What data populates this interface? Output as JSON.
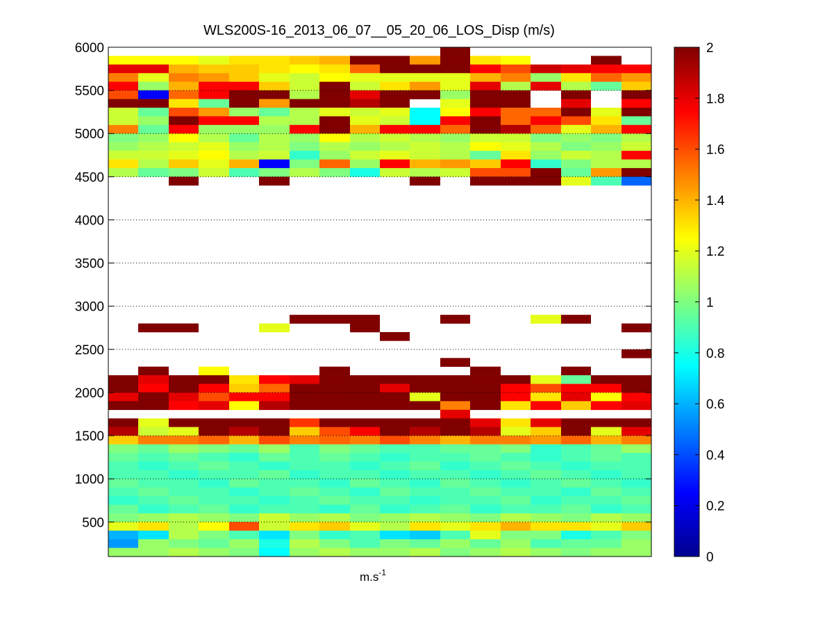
{
  "chart_data": {
    "type": "heatmap",
    "title": "WLS200S-16_2013_06_07__05_20_06_LOS_Disp (m/s)",
    "xlabel_base": "m.s",
    "xlabel_exp": "-1",
    "ylabel": "",
    "ylim": [
      100,
      6000
    ],
    "yticks": [
      500,
      1000,
      1500,
      2000,
      2500,
      3000,
      3500,
      4000,
      4500,
      5000,
      5500,
      6000
    ],
    "grid": "horizontal dotted",
    "n_columns": 18,
    "row_step": 100,
    "colorbar": {
      "colormap": "jet",
      "clim": [
        0,
        2
      ],
      "ticks": [
        0,
        0.2,
        0.4,
        0.6,
        0.8,
        1,
        1.2,
        1.4,
        1.6,
        1.8,
        2
      ]
    },
    "cells": [
      [
        -1,
        -1,
        -1,
        -1,
        -1,
        -1,
        -1,
        -1,
        -1,
        -1,
        -1,
        2,
        -1,
        -1,
        -1,
        -1,
        -1,
        -1
      ],
      [
        1.25,
        1.25,
        1.25,
        1.2,
        1.3,
        1.3,
        1.35,
        1.4,
        2,
        2,
        1.45,
        2,
        1.3,
        1.25,
        -1,
        -1,
        2,
        -1
      ],
      [
        1.8,
        1.8,
        1.4,
        1.35,
        1.35,
        1.3,
        1.25,
        1.3,
        1.55,
        2,
        2,
        2,
        1.75,
        1.6,
        1.85,
        1.8,
        1.75,
        1.75
      ],
      [
        1.5,
        1.2,
        1.5,
        1.45,
        1.35,
        1.2,
        1.15,
        1.25,
        1.2,
        1.2,
        1.2,
        1.2,
        1.4,
        1.5,
        1.05,
        1.3,
        1.55,
        1.45
      ],
      [
        1.75,
        1.05,
        1.4,
        1.75,
        1.75,
        1.35,
        1.15,
        2,
        1.15,
        1.3,
        1.45,
        1.2,
        1.8,
        1.1,
        1.8,
        1.1,
        0.95,
        1.35
      ],
      [
        1.6,
        0.25,
        1.55,
        1.75,
        2,
        2,
        1.1,
        2,
        1.8,
        2,
        2,
        1.05,
        2,
        2,
        -1,
        2,
        -1,
        2
      ],
      [
        2,
        2,
        1.3,
        0.95,
        2,
        1.45,
        2,
        2,
        1.9,
        2,
        -1,
        1.2,
        2,
        2,
        -1,
        1.8,
        -1,
        1.75
      ],
      [
        1.15,
        0.95,
        1.6,
        1.45,
        1.05,
        0.95,
        1.1,
        1.2,
        1.15,
        1.2,
        0.75,
        1.25,
        1.75,
        1.55,
        1.55,
        2,
        1.2,
        2
      ],
      [
        1.15,
        1.05,
        2,
        1.75,
        1.75,
        1.1,
        1.1,
        2,
        1.2,
        1.15,
        0.75,
        1.75,
        2,
        1.55,
        1.75,
        1.6,
        1.3,
        0.95
      ],
      [
        1.5,
        0.95,
        1.75,
        1.05,
        1.05,
        1.05,
        1.75,
        2,
        1.4,
        1.75,
        1.75,
        1.55,
        2,
        1.9,
        1.55,
        1.2,
        1.4,
        1.75
      ],
      [
        1.0,
        1.05,
        1.25,
        1.1,
        0.95,
        1.1,
        1.05,
        1.25,
        1.1,
        1.15,
        1.1,
        1.05,
        1.15,
        1.15,
        1.0,
        1.05,
        1.0,
        1.1
      ],
      [
        1.05,
        1.1,
        1.15,
        1.2,
        1.05,
        1.1,
        1.0,
        1.1,
        1.05,
        1.1,
        1.15,
        1.1,
        1.25,
        1.2,
        1.1,
        1.0,
        1.05,
        1.15
      ],
      [
        1.15,
        1.15,
        1.2,
        1.25,
        1.1,
        1.15,
        0.85,
        1.05,
        1.15,
        1.2,
        1.15,
        1.1,
        0.95,
        1.3,
        1.05,
        1.15,
        1.1,
        1.75
      ],
      [
        1.3,
        1.1,
        1.35,
        1.2,
        1.4,
        0.25,
        1.0,
        1.55,
        1.05,
        1.75,
        1.4,
        1.45,
        1.35,
        1.75,
        0.85,
        1.0,
        1.1,
        1.1
      ],
      [
        1.1,
        0.95,
        1.0,
        1.15,
        0.9,
        1.0,
        1.1,
        1.0,
        0.8,
        1.15,
        1.1,
        1.15,
        1.6,
        1.6,
        2,
        0.95,
        1.45,
        2
      ],
      [
        -1,
        -1,
        2,
        -1,
        -1,
        2,
        -1,
        -1,
        -1,
        -1,
        2,
        -1,
        2,
        2,
        2,
        1.2,
        0.9,
        0.45
      ],
      [
        -1,
        -1,
        -1,
        -1,
        -1,
        -1,
        -1,
        -1,
        -1,
        -1,
        -1,
        -1,
        -1,
        -1,
        -1,
        -1,
        -1,
        -1
      ],
      [
        -1,
        -1,
        -1,
        -1,
        -1,
        -1,
        -1,
        -1,
        -1,
        -1,
        -1,
        -1,
        -1,
        -1,
        -1,
        -1,
        -1,
        -1
      ],
      [
        -1,
        -1,
        -1,
        -1,
        -1,
        -1,
        -1,
        -1,
        -1,
        -1,
        -1,
        -1,
        -1,
        -1,
        -1,
        -1,
        -1,
        -1
      ],
      [
        -1,
        -1,
        -1,
        -1,
        -1,
        -1,
        -1,
        -1,
        -1,
        -1,
        -1,
        -1,
        -1,
        -1,
        -1,
        -1,
        -1,
        -1
      ],
      [
        -1,
        -1,
        -1,
        -1,
        -1,
        -1,
        -1,
        -1,
        -1,
        -1,
        -1,
        -1,
        -1,
        -1,
        -1,
        -1,
        -1,
        -1
      ],
      [
        -1,
        -1,
        -1,
        -1,
        -1,
        -1,
        -1,
        -1,
        -1,
        -1,
        -1,
        -1,
        -1,
        -1,
        -1,
        -1,
        -1,
        -1
      ],
      [
        -1,
        -1,
        -1,
        -1,
        -1,
        -1,
        -1,
        -1,
        -1,
        -1,
        -1,
        -1,
        -1,
        -1,
        -1,
        -1,
        -1,
        -1
      ],
      [
        -1,
        -1,
        -1,
        -1,
        -1,
        -1,
        -1,
        -1,
        -1,
        -1,
        -1,
        -1,
        -1,
        -1,
        -1,
        -1,
        -1,
        -1
      ],
      [
        -1,
        -1,
        -1,
        -1,
        -1,
        -1,
        -1,
        -1,
        -1,
        -1,
        -1,
        -1,
        -1,
        -1,
        -1,
        -1,
        -1,
        -1
      ],
      [
        -1,
        -1,
        -1,
        -1,
        -1,
        -1,
        -1,
        -1,
        -1,
        -1,
        -1,
        -1,
        -1,
        -1,
        -1,
        -1,
        -1,
        -1
      ],
      [
        -1,
        -1,
        -1,
        -1,
        -1,
        -1,
        -1,
        -1,
        -1,
        -1,
        -1,
        -1,
        -1,
        -1,
        -1,
        -1,
        -1,
        -1
      ],
      [
        -1,
        -1,
        -1,
        -1,
        -1,
        -1,
        -1,
        -1,
        -1,
        -1,
        -1,
        -1,
        -1,
        -1,
        -1,
        -1,
        -1,
        -1
      ],
      [
        -1,
        -1,
        -1,
        -1,
        -1,
        -1,
        -1,
        -1,
        -1,
        -1,
        -1,
        -1,
        -1,
        -1,
        -1,
        -1,
        -1,
        -1
      ],
      [
        -1,
        -1,
        -1,
        -1,
        -1,
        -1,
        -1,
        -1,
        -1,
        -1,
        -1,
        -1,
        -1,
        -1,
        -1,
        -1,
        -1,
        -1
      ],
      [
        -1,
        -1,
        -1,
        -1,
        -1,
        -1,
        -1,
        -1,
        -1,
        -1,
        -1,
        -1,
        -1,
        -1,
        -1,
        -1,
        -1,
        -1
      ],
      [
        -1,
        -1,
        -1,
        -1,
        -1,
        -1,
        2,
        2,
        2,
        -1,
        -1,
        2,
        -1,
        -1,
        1.2,
        2,
        -1,
        -1
      ],
      [
        -1,
        2,
        2,
        -1,
        -1,
        1.2,
        -1,
        -1,
        2,
        -1,
        -1,
        -1,
        -1,
        -1,
        -1,
        -1,
        -1,
        2
      ],
      [
        -1,
        -1,
        -1,
        -1,
        -1,
        -1,
        -1,
        -1,
        -1,
        2,
        -1,
        -1,
        -1,
        -1,
        -1,
        -1,
        -1,
        -1
      ],
      [
        -1,
        -1,
        -1,
        -1,
        -1,
        -1,
        -1,
        -1,
        -1,
        -1,
        -1,
        -1,
        -1,
        -1,
        -1,
        -1,
        -1,
        -1
      ],
      [
        -1,
        -1,
        -1,
        -1,
        -1,
        -1,
        -1,
        -1,
        -1,
        -1,
        -1,
        -1,
        -1,
        -1,
        -1,
        -1,
        -1,
        2
      ],
      [
        -1,
        -1,
        -1,
        -1,
        -1,
        -1,
        -1,
        -1,
        -1,
        -1,
        -1,
        2,
        -1,
        -1,
        -1,
        -1,
        -1,
        -1
      ],
      [
        -1,
        2,
        -1,
        1.25,
        -1,
        -1,
        -1,
        2,
        -1,
        -1,
        -1,
        -1,
        2,
        -1,
        -1,
        2,
        -1,
        -1
      ],
      [
        2,
        1.8,
        2,
        2,
        1.3,
        1.75,
        1.8,
        2,
        2,
        2,
        2,
        2,
        2,
        2,
        1.2,
        0.95,
        2,
        2
      ],
      [
        2,
        1.75,
        2,
        1.75,
        1.35,
        1.55,
        2,
        2,
        2,
        1.8,
        2,
        2,
        2,
        1.75,
        1.6,
        1.75,
        1.75,
        2
      ],
      [
        1.8,
        2,
        1.8,
        1.6,
        1.75,
        1.75,
        2,
        2,
        2,
        2,
        1.2,
        2,
        2,
        1.75,
        1.3,
        1.8,
        1.25,
        1.75
      ],
      [
        2,
        2,
        1.75,
        1.8,
        1.25,
        1.9,
        2,
        2,
        2,
        2,
        2,
        1.5,
        2,
        1.3,
        1.75,
        1.35,
        1.75,
        1.8
      ],
      [
        -1,
        -1,
        -1,
        -1,
        -1,
        -1,
        -1,
        -1,
        -1,
        -1,
        -1,
        1.8,
        -1,
        -1,
        -1,
        -1,
        -1,
        -1
      ],
      [
        2,
        1.2,
        2,
        2,
        2,
        2,
        1.65,
        2,
        2,
        2,
        2,
        2,
        1.8,
        1.3,
        1.8,
        2,
        2,
        2
      ],
      [
        1.9,
        1.15,
        1.2,
        2,
        1.9,
        2,
        1.35,
        1.6,
        1.75,
        2,
        1.9,
        2,
        1.9,
        1.2,
        1.35,
        2,
        1.2,
        1.8
      ],
      [
        1.35,
        1.5,
        1.5,
        1.55,
        1.4,
        1.6,
        1.5,
        1.55,
        1.5,
        1.6,
        1.5,
        1.4,
        1.5,
        1.5,
        1.45,
        1.55,
        1.4,
        1.5
      ],
      [
        1.0,
        0.95,
        1.05,
        1.0,
        0.95,
        1.05,
        0.9,
        1.0,
        0.95,
        0.9,
        0.9,
        0.95,
        0.95,
        1.0,
        0.85,
        0.9,
        0.95,
        1.05
      ],
      [
        0.95,
        0.9,
        0.95,
        0.9,
        0.85,
        0.95,
        0.9,
        0.95,
        0.9,
        0.85,
        0.9,
        0.9,
        0.95,
        0.9,
        0.85,
        0.9,
        0.95,
        0.9
      ],
      [
        0.9,
        0.85,
        0.9,
        0.95,
        0.9,
        0.85,
        0.9,
        0.9,
        0.85,
        0.9,
        0.95,
        0.85,
        0.9,
        0.95,
        0.9,
        0.85,
        0.9,
        0.9
      ],
      [
        0.9,
        0.9,
        0.85,
        0.9,
        0.9,
        0.95,
        0.85,
        0.9,
        0.9,
        0.85,
        0.9,
        0.9,
        0.85,
        0.9,
        0.95,
        0.9,
        0.85,
        0.9
      ],
      [
        0.95,
        0.9,
        0.9,
        0.85,
        0.95,
        0.9,
        0.9,
        0.85,
        0.95,
        0.9,
        0.85,
        0.95,
        0.9,
        0.85,
        0.9,
        0.95,
        0.9,
        0.85
      ],
      [
        0.9,
        0.95,
        0.9,
        0.9,
        0.85,
        0.9,
        0.95,
        0.9,
        0.85,
        0.95,
        0.9,
        0.9,
        0.95,
        0.9,
        0.9,
        0.85,
        0.95,
        0.9
      ],
      [
        0.85,
        0.9,
        0.95,
        0.9,
        0.9,
        0.85,
        0.9,
        0.95,
        0.9,
        0.9,
        0.85,
        0.9,
        0.9,
        0.95,
        0.85,
        0.9,
        0.9,
        0.95
      ],
      [
        0.95,
        0.85,
        0.9,
        0.95,
        0.85,
        0.9,
        0.9,
        0.85,
        0.95,
        0.85,
        0.9,
        0.95,
        0.85,
        0.9,
        0.9,
        0.95,
        0.85,
        0.9
      ],
      [
        1.0,
        1.05,
        1.1,
        1.05,
        1.0,
        1.15,
        1.05,
        1.1,
        1.0,
        1.05,
        1.1,
        1.05,
        1.0,
        1.1,
        1.05,
        1.0,
        1.1,
        1.05
      ],
      [
        1.2,
        1.3,
        1.1,
        1.25,
        1.6,
        1.15,
        1.3,
        1.35,
        1.2,
        1.1,
        1.3,
        1.2,
        1.3,
        1.4,
        1.3,
        1.3,
        1.2,
        1.35
      ],
      [
        0.6,
        0.7,
        1.1,
        1.0,
        0.9,
        0.7,
        1.0,
        0.85,
        0.9,
        0.7,
        0.65,
        0.9,
        1.2,
        1.0,
        1.0,
        0.8,
        0.9,
        1.0
      ],
      [
        0.55,
        1.05,
        1.0,
        0.95,
        1.05,
        0.8,
        1.1,
        1.0,
        0.9,
        1.0,
        0.95,
        1.05,
        0.95,
        1.05,
        0.9,
        0.95,
        0.95,
        1.05
      ],
      [
        1.05,
        1.05,
        1.1,
        1.05,
        1.0,
        0.75,
        1.05,
        1.1,
        1.05,
        1.05,
        1.1,
        1.0,
        1.05,
        1.1,
        1.05,
        1.0,
        1.05,
        1.05
      ]
    ]
  }
}
